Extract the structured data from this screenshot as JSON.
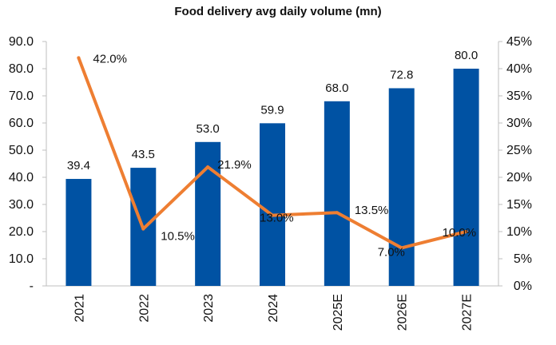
{
  "chart_data": {
    "type": "bar",
    "title": "Food delivery avg daily volume (mn)",
    "categories": [
      "2021",
      "2022",
      "2023",
      "2024",
      "2025E",
      "2026E",
      "2027E"
    ],
    "series": [
      {
        "type": "bar",
        "axis": "left",
        "values": [
          39.4,
          43.5,
          53.0,
          59.9,
          68.0,
          72.8,
          80.0
        ],
        "labels": [
          "39.4",
          "43.5",
          "53.0",
          "59.9",
          "68.0",
          "72.8",
          "80.0"
        ],
        "color": "#0052A3"
      },
      {
        "type": "line",
        "axis": "right",
        "values": [
          42.0,
          10.5,
          21.9,
          13.0,
          13.5,
          7.0,
          10.0
        ],
        "labels": [
          "42.0%",
          "10.5%",
          "21.9%",
          "13.0%",
          "13.5%",
          "7.0%",
          "10.0%"
        ],
        "color": "#EE7E32"
      }
    ],
    "y_left": {
      "range": [
        0,
        90
      ],
      "ticks": [
        0,
        10,
        20,
        30,
        40,
        50,
        60,
        70,
        80,
        90
      ],
      "tick_labels": [
        "-",
        "10.0",
        "20.0",
        "30.0",
        "40.0",
        "50.0",
        "60.0",
        "70.0",
        "80.0",
        "90.0"
      ]
    },
    "y_right": {
      "range": [
        0,
        45
      ],
      "ticks": [
        0,
        5,
        10,
        15,
        20,
        25,
        30,
        35,
        40,
        45
      ],
      "tick_labels": [
        "0%",
        "5%",
        "10%",
        "15%",
        "20%",
        "25%",
        "30%",
        "35%",
        "40%",
        "45%"
      ]
    },
    "grid": false,
    "legend": "none",
    "axis_color": "#BFBFBF",
    "text_color": "#111111"
  }
}
